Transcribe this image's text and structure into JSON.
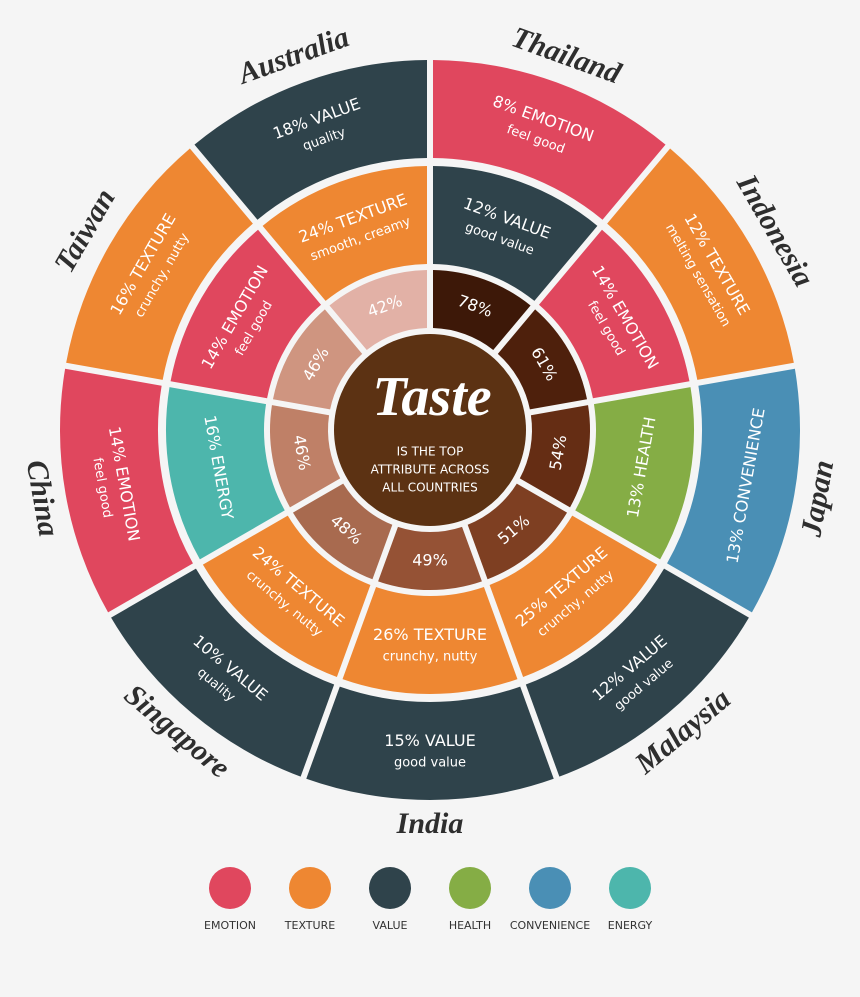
{
  "center": {
    "title": "Taste",
    "subtitle": [
      "IS THE TOP",
      "ATTRIBUTE ACROSS",
      "ALL COUNTRIES"
    ]
  },
  "countries": [
    {
      "name": "Thailand",
      "taste": {
        "label": "78%",
        "color": "#3d1808"
      },
      "inner": {
        "pct": "12%",
        "attribute": "VALUE",
        "detail": "good value"
      },
      "outer": {
        "pct": "8%",
        "attribute": "EMOTION",
        "detail": "feel good"
      }
    },
    {
      "name": "Indonesia",
      "taste": {
        "label": "61%",
        "color": "#4e200c"
      },
      "inner": {
        "pct": "14%",
        "attribute": "EMOTION",
        "detail": "feel good"
      },
      "outer": {
        "pct": "12%",
        "attribute": "TEXTURE",
        "detail": "melting sensation"
      }
    },
    {
      "name": "Japan",
      "taste": {
        "label": "54%",
        "color": "#652d14"
      },
      "inner": {
        "pct": "13%",
        "attribute": "HEALTH",
        "detail": null
      },
      "outer": {
        "pct": "13%",
        "attribute": "CONVENIENCE",
        "detail": null
      }
    },
    {
      "name": "Malaysia",
      "taste": {
        "label": "51%",
        "color": "#7e3f22"
      },
      "inner": {
        "pct": "25%",
        "attribute": "TEXTURE",
        "detail": "crunchy, nutty"
      },
      "outer": {
        "pct": "12%",
        "attribute": "VALUE",
        "detail": "good value"
      }
    },
    {
      "name": "India",
      "taste": {
        "label": "49%",
        "color": "#955235"
      },
      "inner": {
        "pct": "26%",
        "attribute": "TEXTURE",
        "detail": "crunchy, nutty"
      },
      "outer": {
        "pct": "15%",
        "attribute": "VALUE",
        "detail": "good value"
      }
    },
    {
      "name": "Singapore",
      "taste": {
        "label": "48%",
        "color": "#a86a4f"
      },
      "inner": {
        "pct": "24%",
        "attribute": "TEXTURE",
        "detail": "crunchy, nutty"
      },
      "outer": {
        "pct": "10%",
        "attribute": "VALUE",
        "detail": "quality"
      }
    },
    {
      "name": "China",
      "taste": {
        "label": "46%",
        "color": "#bf8067"
      },
      "inner": {
        "pct": "16%",
        "attribute": "ENERGY",
        "detail": null
      },
      "outer": {
        "pct": "14%",
        "attribute": "EMOTION",
        "detail": "feel good"
      }
    },
    {
      "name": "Taiwan",
      "taste": {
        "label": "46%",
        "color": "#cf9580"
      },
      "inner": {
        "pct": "14%",
        "attribute": "EMOTION",
        "detail": "feel good"
      },
      "outer": {
        "pct": "16%",
        "attribute": "TEXTURE",
        "detail": "crunchy, nutty"
      }
    },
    {
      "name": "Australia",
      "taste": {
        "label": "42%",
        "color": "#e2b1a6"
      },
      "inner": {
        "pct": "24%",
        "attribute": "TEXTURE",
        "detail": "smooth, creamy"
      },
      "outer": {
        "pct": "18%",
        "attribute": "VALUE",
        "detail": "quality"
      }
    }
  ],
  "legend": [
    {
      "label": "EMOTION",
      "color": "#e0475e"
    },
    {
      "label": "TEXTURE",
      "color": "#ee8732"
    },
    {
      "label": "VALUE",
      "color": "#2f434b"
    },
    {
      "label": "HEALTH",
      "color": "#85ad45"
    },
    {
      "label": "CONVENIENCE",
      "color": "#4a8fb5"
    },
    {
      "label": "ENERGY",
      "color": "#4db6ac"
    }
  ]
}
